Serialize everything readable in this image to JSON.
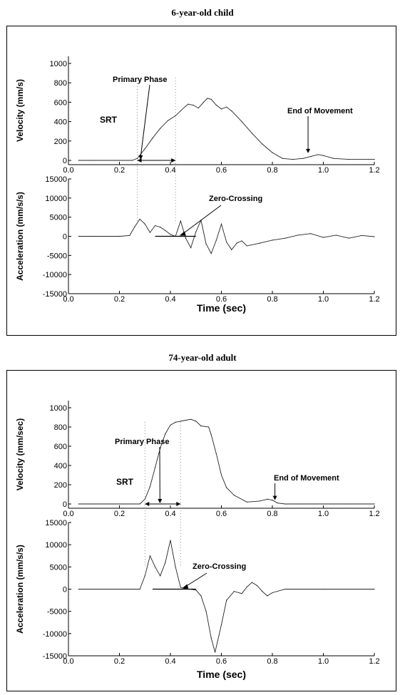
{
  "figures": [
    {
      "title": "6-year-old child",
      "velocity": {
        "ylabel": "Velocity (mm/s)",
        "xticks": [
          "0.0",
          "0.2",
          "0.4",
          "0.6",
          "0.8",
          "1.0",
          "1.2"
        ],
        "yticks": [
          "0",
          "200",
          "400",
          "600",
          "800",
          "1000"
        ],
        "annotations": {
          "primary_phase": "Primary Phase",
          "srt": "SRT",
          "end_of_movement": "End of Movement"
        }
      },
      "acceleration": {
        "ylabel": "Acceleration (mm/s/s)",
        "xlabel": "Time (sec)",
        "xticks": [
          "0.0",
          "0.2",
          "0.4",
          "0.6",
          "0.8",
          "1.0",
          "1.2"
        ],
        "yticks": [
          "15000",
          "10000",
          "5000",
          "0",
          "-5000",
          "-10000",
          "-15000"
        ],
        "annotations": {
          "zero_crossing": "Zero-Crossing"
        }
      }
    },
    {
      "title": "74-year-old adult",
      "velocity": {
        "ylabel": "Velocity (mm/sec)",
        "xticks": [
          "0.0",
          "0.2",
          "0.4",
          "0.6",
          "0.8",
          "1.0",
          "1.2"
        ],
        "yticks": [
          "0",
          "200",
          "400",
          "600",
          "800",
          "1000"
        ],
        "annotations": {
          "primary_phase": "Primary Phase",
          "srt": "SRT",
          "end_of_movement": "End of Movement"
        }
      },
      "acceleration": {
        "ylabel": "Acceleration (mm/s/s)",
        "xlabel": "Time (sec)",
        "xticks": [
          "0.0",
          "0.2",
          "0.4",
          "0.6",
          "0.8",
          "1.0",
          "1.2"
        ],
        "yticks": [
          "15000",
          "10000",
          "5000",
          "0",
          "-5000",
          "-10000",
          "-15000"
        ],
        "annotations": {
          "zero_crossing": "Zero-Crossing"
        }
      }
    }
  ],
  "chart_data": [
    {
      "type": "line",
      "figure": "6-year-old child",
      "xlabel": "",
      "ylabel": "Velocity (mm/s)",
      "xlim": [
        0,
        1.2
      ],
      "ylim": [
        -50,
        1050
      ],
      "grid": false,
      "x": [
        0.04,
        0.1,
        0.2,
        0.25,
        0.27,
        0.3,
        0.33,
        0.36,
        0.39,
        0.42,
        0.44,
        0.46,
        0.47,
        0.49,
        0.51,
        0.53,
        0.545,
        0.56,
        0.58,
        0.6,
        0.62,
        0.64,
        0.68,
        0.72,
        0.76,
        0.8,
        0.84,
        0.88,
        0.92,
        0.95,
        0.98,
        1.0,
        1.04,
        1.1,
        1.2
      ],
      "y": [
        0,
        0,
        0,
        0,
        20,
        120,
        230,
        330,
        410,
        460,
        510,
        560,
        580,
        570,
        540,
        600,
        640,
        630,
        570,
        530,
        550,
        510,
        400,
        280,
        170,
        80,
        20,
        10,
        20,
        40,
        60,
        50,
        20,
        10,
        10
      ],
      "markers": {
        "srt": 0.27,
        "primary_phase_end": 0.42,
        "end_of_movement": 0.94
      }
    },
    {
      "type": "line",
      "figure": "6-year-old child",
      "xlabel": "Time (sec)",
      "ylabel": "Acceleration (mm/s/s)",
      "xlim": [
        0,
        1.2
      ],
      "ylim": [
        -15000,
        15000
      ],
      "grid": false,
      "x": [
        0.04,
        0.1,
        0.2,
        0.24,
        0.26,
        0.28,
        0.3,
        0.32,
        0.34,
        0.36,
        0.38,
        0.4,
        0.42,
        0.44,
        0.46,
        0.48,
        0.5,
        0.52,
        0.54,
        0.56,
        0.58,
        0.6,
        0.62,
        0.64,
        0.66,
        0.68,
        0.7,
        0.75,
        0.8,
        0.85,
        0.9,
        0.95,
        1.0,
        1.05,
        1.1,
        1.15,
        1.2
      ],
      "y": [
        0,
        0,
        0,
        200,
        2500,
        4500,
        3200,
        1000,
        2800,
        2400,
        1500,
        500,
        0,
        4000,
        -500,
        -3000,
        1200,
        4200,
        -2000,
        -4500,
        -1000,
        3200,
        -1500,
        -3500,
        -1800,
        -1200,
        -2500,
        -1800,
        -1000,
        -500,
        300,
        700,
        -300,
        300,
        -500,
        200,
        -100
      ],
      "markers": {
        "zero_crossing": 0.43,
        "primary_phase": [
          0.34,
          0.5
        ]
      }
    },
    {
      "type": "line",
      "figure": "74-year-old adult",
      "xlabel": "",
      "ylabel": "Velocity (mm/sec)",
      "xlim": [
        0,
        1.2
      ],
      "ylim": [
        -50,
        1050
      ],
      "grid": false,
      "x": [
        0.04,
        0.1,
        0.2,
        0.28,
        0.3,
        0.32,
        0.34,
        0.36,
        0.38,
        0.4,
        0.42,
        0.44,
        0.46,
        0.48,
        0.5,
        0.52,
        0.55,
        0.56,
        0.58,
        0.6,
        0.62,
        0.65,
        0.7,
        0.75,
        0.78,
        0.8,
        0.82,
        0.85,
        0.9,
        1.0,
        1.1,
        1.2
      ],
      "y": [
        0,
        0,
        0,
        0,
        50,
        180,
        380,
        580,
        730,
        820,
        850,
        860,
        870,
        880,
        860,
        810,
        800,
        720,
        520,
        300,
        170,
        90,
        20,
        30,
        50,
        40,
        10,
        0,
        0,
        0,
        0,
        0
      ],
      "markers": {
        "srt": 0.3,
        "primary_phase_end": 0.44,
        "end_of_movement": 0.81
      }
    },
    {
      "type": "line",
      "figure": "74-year-old adult",
      "xlabel": "Time (sec)",
      "ylabel": "Acceleration (mm/s/s)",
      "xlim": [
        0,
        1.2
      ],
      "ylim": [
        -15000,
        15000
      ],
      "grid": false,
      "x": [
        0.04,
        0.1,
        0.2,
        0.28,
        0.3,
        0.32,
        0.34,
        0.36,
        0.38,
        0.4,
        0.42,
        0.44,
        0.46,
        0.5,
        0.52,
        0.54,
        0.56,
        0.575,
        0.6,
        0.62,
        0.65,
        0.68,
        0.7,
        0.72,
        0.74,
        0.76,
        0.78,
        0.8,
        0.85,
        0.9,
        1.0,
        1.1,
        1.2
      ],
      "y": [
        0,
        0,
        0,
        0,
        3000,
        7500,
        5000,
        3000,
        6000,
        11000,
        5000,
        400,
        100,
        -200,
        -1500,
        -5000,
        -11000,
        -14200,
        -8000,
        -2500,
        -500,
        -1000,
        500,
        1500,
        800,
        -500,
        -1500,
        -800,
        0,
        0,
        0,
        0,
        0
      ],
      "markers": {
        "zero_crossing": 0.44,
        "primary_phase": [
          0.33,
          0.5
        ]
      }
    }
  ]
}
